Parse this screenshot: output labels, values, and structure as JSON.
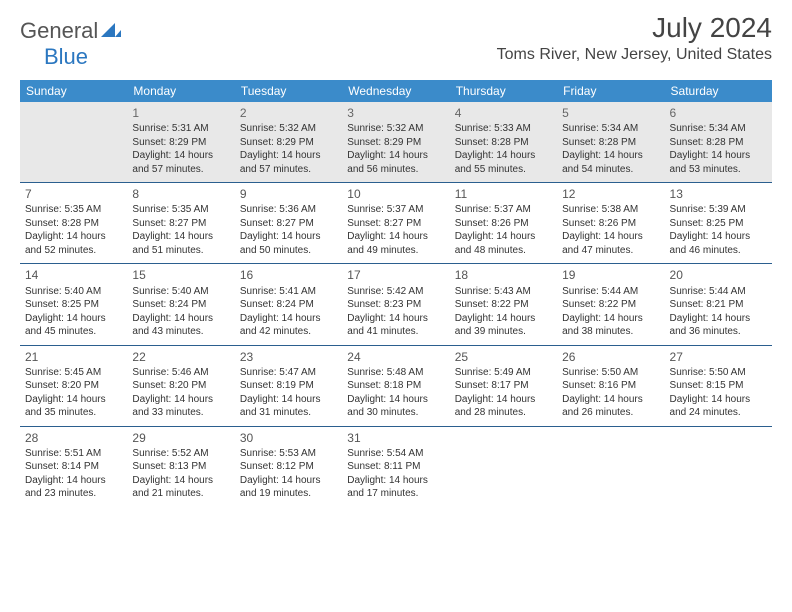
{
  "brand": {
    "general": "General",
    "blue": "Blue"
  },
  "title": "July 2024",
  "location": "Toms River, New Jersey, United States",
  "colors": {
    "header_bg": "#3b8bca",
    "header_fg": "#ffffff",
    "rule": "#2b5f8f",
    "firstrow_bg": "#e8e8e8",
    "brand_blue": "#2b77c0"
  },
  "weekdays": [
    "Sunday",
    "Monday",
    "Tuesday",
    "Wednesday",
    "Thursday",
    "Friday",
    "Saturday"
  ],
  "weeks": [
    [
      null,
      {
        "n": "1",
        "sr": "Sunrise: 5:31 AM",
        "ss": "Sunset: 8:29 PM",
        "dl": "Daylight: 14 hours and 57 minutes."
      },
      {
        "n": "2",
        "sr": "Sunrise: 5:32 AM",
        "ss": "Sunset: 8:29 PM",
        "dl": "Daylight: 14 hours and 57 minutes."
      },
      {
        "n": "3",
        "sr": "Sunrise: 5:32 AM",
        "ss": "Sunset: 8:29 PM",
        "dl": "Daylight: 14 hours and 56 minutes."
      },
      {
        "n": "4",
        "sr": "Sunrise: 5:33 AM",
        "ss": "Sunset: 8:28 PM",
        "dl": "Daylight: 14 hours and 55 minutes."
      },
      {
        "n": "5",
        "sr": "Sunrise: 5:34 AM",
        "ss": "Sunset: 8:28 PM",
        "dl": "Daylight: 14 hours and 54 minutes."
      },
      {
        "n": "6",
        "sr": "Sunrise: 5:34 AM",
        "ss": "Sunset: 8:28 PM",
        "dl": "Daylight: 14 hours and 53 minutes."
      }
    ],
    [
      {
        "n": "7",
        "sr": "Sunrise: 5:35 AM",
        "ss": "Sunset: 8:28 PM",
        "dl": "Daylight: 14 hours and 52 minutes."
      },
      {
        "n": "8",
        "sr": "Sunrise: 5:35 AM",
        "ss": "Sunset: 8:27 PM",
        "dl": "Daylight: 14 hours and 51 minutes."
      },
      {
        "n": "9",
        "sr": "Sunrise: 5:36 AM",
        "ss": "Sunset: 8:27 PM",
        "dl": "Daylight: 14 hours and 50 minutes."
      },
      {
        "n": "10",
        "sr": "Sunrise: 5:37 AM",
        "ss": "Sunset: 8:27 PM",
        "dl": "Daylight: 14 hours and 49 minutes."
      },
      {
        "n": "11",
        "sr": "Sunrise: 5:37 AM",
        "ss": "Sunset: 8:26 PM",
        "dl": "Daylight: 14 hours and 48 minutes."
      },
      {
        "n": "12",
        "sr": "Sunrise: 5:38 AM",
        "ss": "Sunset: 8:26 PM",
        "dl": "Daylight: 14 hours and 47 minutes."
      },
      {
        "n": "13",
        "sr": "Sunrise: 5:39 AM",
        "ss": "Sunset: 8:25 PM",
        "dl": "Daylight: 14 hours and 46 minutes."
      }
    ],
    [
      {
        "n": "14",
        "sr": "Sunrise: 5:40 AM",
        "ss": "Sunset: 8:25 PM",
        "dl": "Daylight: 14 hours and 45 minutes."
      },
      {
        "n": "15",
        "sr": "Sunrise: 5:40 AM",
        "ss": "Sunset: 8:24 PM",
        "dl": "Daylight: 14 hours and 43 minutes."
      },
      {
        "n": "16",
        "sr": "Sunrise: 5:41 AM",
        "ss": "Sunset: 8:24 PM",
        "dl": "Daylight: 14 hours and 42 minutes."
      },
      {
        "n": "17",
        "sr": "Sunrise: 5:42 AM",
        "ss": "Sunset: 8:23 PM",
        "dl": "Daylight: 14 hours and 41 minutes."
      },
      {
        "n": "18",
        "sr": "Sunrise: 5:43 AM",
        "ss": "Sunset: 8:22 PM",
        "dl": "Daylight: 14 hours and 39 minutes."
      },
      {
        "n": "19",
        "sr": "Sunrise: 5:44 AM",
        "ss": "Sunset: 8:22 PM",
        "dl": "Daylight: 14 hours and 38 minutes."
      },
      {
        "n": "20",
        "sr": "Sunrise: 5:44 AM",
        "ss": "Sunset: 8:21 PM",
        "dl": "Daylight: 14 hours and 36 minutes."
      }
    ],
    [
      {
        "n": "21",
        "sr": "Sunrise: 5:45 AM",
        "ss": "Sunset: 8:20 PM",
        "dl": "Daylight: 14 hours and 35 minutes."
      },
      {
        "n": "22",
        "sr": "Sunrise: 5:46 AM",
        "ss": "Sunset: 8:20 PM",
        "dl": "Daylight: 14 hours and 33 minutes."
      },
      {
        "n": "23",
        "sr": "Sunrise: 5:47 AM",
        "ss": "Sunset: 8:19 PM",
        "dl": "Daylight: 14 hours and 31 minutes."
      },
      {
        "n": "24",
        "sr": "Sunrise: 5:48 AM",
        "ss": "Sunset: 8:18 PM",
        "dl": "Daylight: 14 hours and 30 minutes."
      },
      {
        "n": "25",
        "sr": "Sunrise: 5:49 AM",
        "ss": "Sunset: 8:17 PM",
        "dl": "Daylight: 14 hours and 28 minutes."
      },
      {
        "n": "26",
        "sr": "Sunrise: 5:50 AM",
        "ss": "Sunset: 8:16 PM",
        "dl": "Daylight: 14 hours and 26 minutes."
      },
      {
        "n": "27",
        "sr": "Sunrise: 5:50 AM",
        "ss": "Sunset: 8:15 PM",
        "dl": "Daylight: 14 hours and 24 minutes."
      }
    ],
    [
      {
        "n": "28",
        "sr": "Sunrise: 5:51 AM",
        "ss": "Sunset: 8:14 PM",
        "dl": "Daylight: 14 hours and 23 minutes."
      },
      {
        "n": "29",
        "sr": "Sunrise: 5:52 AM",
        "ss": "Sunset: 8:13 PM",
        "dl": "Daylight: 14 hours and 21 minutes."
      },
      {
        "n": "30",
        "sr": "Sunrise: 5:53 AM",
        "ss": "Sunset: 8:12 PM",
        "dl": "Daylight: 14 hours and 19 minutes."
      },
      {
        "n": "31",
        "sr": "Sunrise: 5:54 AM",
        "ss": "Sunset: 8:11 PM",
        "dl": "Daylight: 14 hours and 17 minutes."
      },
      null,
      null,
      null
    ]
  ]
}
